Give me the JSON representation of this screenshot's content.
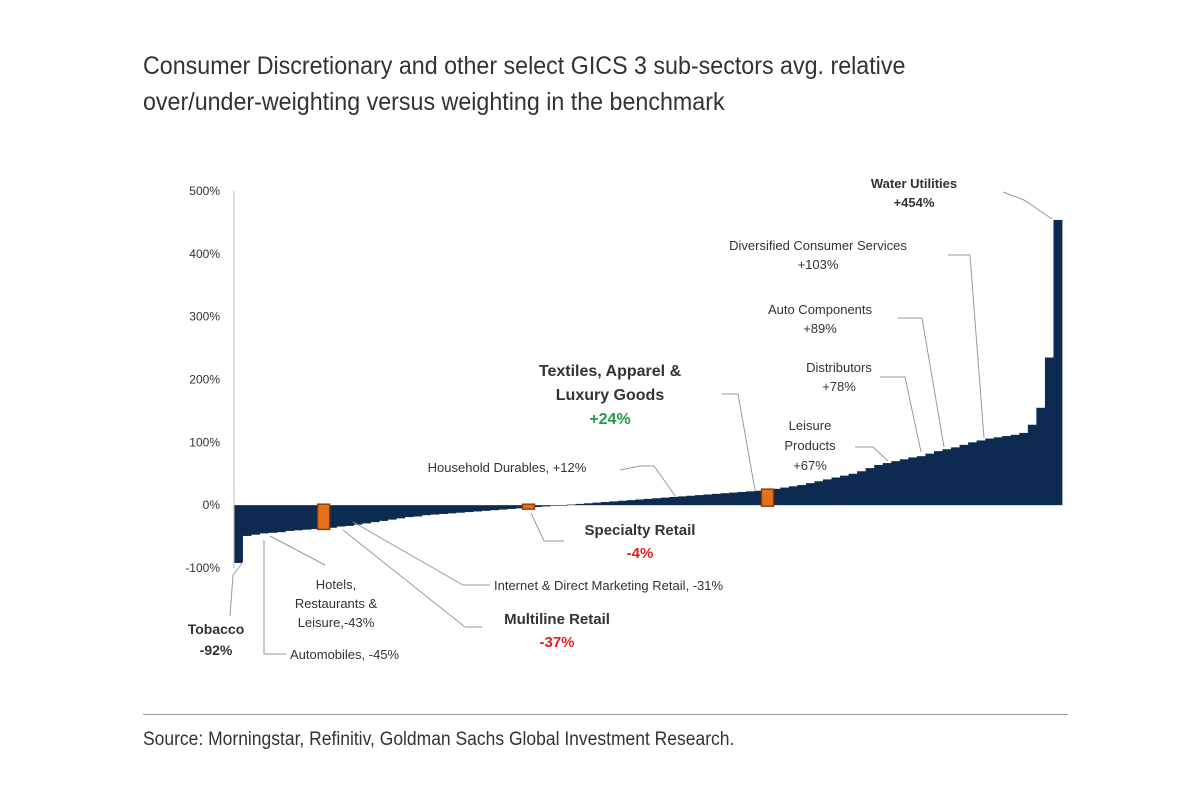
{
  "chart_data": {
    "type": "bar",
    "title": [
      "Consumer Discretionary and other select GICS 3 sub-sectors avg. relative",
      "over/under-weighting versus weighting in the benchmark"
    ],
    "xlabel": "",
    "ylabel": "",
    "ylim": [
      -100,
      500
    ],
    "yticks": [
      "-100%",
      "0%",
      "100%",
      "200%",
      "300%",
      "400%",
      "500%"
    ],
    "ytick_values": [
      -100,
      0,
      100,
      200,
      300,
      400,
      500
    ],
    "grid": false,
    "legend": "none",
    "bar_color": "#0d2a50",
    "highlight_color": "#e8701a",
    "values": [
      -92,
      -49,
      -47,
      -45,
      -44,
      -43,
      -41,
      -40,
      -39,
      -38,
      -37,
      -36,
      -34,
      -33,
      -31,
      -29,
      -27,
      -25,
      -23,
      -21,
      -19,
      -18,
      -16,
      -15,
      -14,
      -13,
      -12,
      -11,
      -10,
      -9,
      -8,
      -7,
      -6,
      -5,
      -4,
      -3,
      -2,
      -1,
      0,
      1,
      2,
      3,
      4,
      5,
      6,
      7,
      8,
      9,
      10,
      11,
      12,
      13,
      14,
      15,
      16,
      17,
      18,
      19,
      20,
      21,
      22,
      23,
      24,
      26,
      28,
      30,
      32,
      35,
      38,
      41,
      44,
      47,
      50,
      54,
      59,
      64,
      67,
      70,
      73,
      76,
      78,
      82,
      86,
      89,
      92,
      96,
      100,
      103,
      106,
      108,
      110,
      112,
      115,
      128,
      155,
      235,
      454
    ],
    "highlighted": [
      {
        "name": "Multiline Retail",
        "value": -37
      },
      {
        "name": "Specialty Retail",
        "value": -4
      },
      {
        "name": "Textiles, Apparel & Luxury Goods",
        "value": 24
      }
    ],
    "annotations": [
      {
        "name": "Water Utilities",
        "value": 454,
        "lines": [
          "Water Utilities",
          "+454%"
        ],
        "bold": true,
        "color": "#333333"
      },
      {
        "name": "Diversified Consumer Services",
        "value": 103,
        "lines": [
          "Diversified Consumer Services",
          "+103%"
        ],
        "bold": false,
        "color": "#333333"
      },
      {
        "name": "Auto Components",
        "value": 89,
        "lines": [
          "Auto Components",
          "+89%"
        ],
        "bold": false,
        "color": "#333333"
      },
      {
        "name": "Distributors",
        "value": 78,
        "lines": [
          "Distributors",
          "+78%"
        ],
        "bold": false,
        "color": "#333333"
      },
      {
        "name": "Leisure Products",
        "value": 67,
        "lines": [
          "Leisure",
          "Products",
          "+67%"
        ],
        "bold": false,
        "color": "#333333"
      },
      {
        "name": "Textiles, Apparel & Luxury Goods",
        "value": 24,
        "lines": [
          "Textiles, Apparel &",
          "Luxury Goods",
          "+24%"
        ],
        "bold": true,
        "color": "#333333",
        "value_color": "#1e9e4a"
      },
      {
        "name": "Household Durables",
        "value": 12,
        "lines": [
          "Household Durables, +12%"
        ],
        "bold": false,
        "color": "#333333"
      },
      {
        "name": "Specialty Retail",
        "value": -4,
        "lines": [
          "Specialty Retail",
          "-4%"
        ],
        "bold": true,
        "color": "#333333",
        "value_color": "#e02020"
      },
      {
        "name": "Internet & Direct Marketing Retail",
        "value": -31,
        "lines": [
          "Internet & Direct Marketing Retail, -31%"
        ],
        "bold": false,
        "color": "#333333"
      },
      {
        "name": "Multiline Retail",
        "value": -37,
        "lines": [
          "Multiline Retail",
          "-37%"
        ],
        "bold": true,
        "color": "#333333",
        "value_color": "#e02020"
      },
      {
        "name": "Hotels, Restaurants & Leisure",
        "value": -43,
        "lines": [
          "Hotels,",
          "Restaurants &",
          "Leisure,-43%"
        ],
        "bold": false,
        "color": "#333333"
      },
      {
        "name": "Automobiles",
        "value": -45,
        "lines": [
          "Automobiles, -45%"
        ],
        "bold": false,
        "color": "#333333"
      },
      {
        "name": "Tobacco",
        "value": -92,
        "lines": [
          "Tobacco",
          "-92%"
        ],
        "bold": true,
        "color": "#333333"
      }
    ]
  },
  "source": "Source: Morningstar, Refinitiv, Goldman Sachs Global Investment Research."
}
